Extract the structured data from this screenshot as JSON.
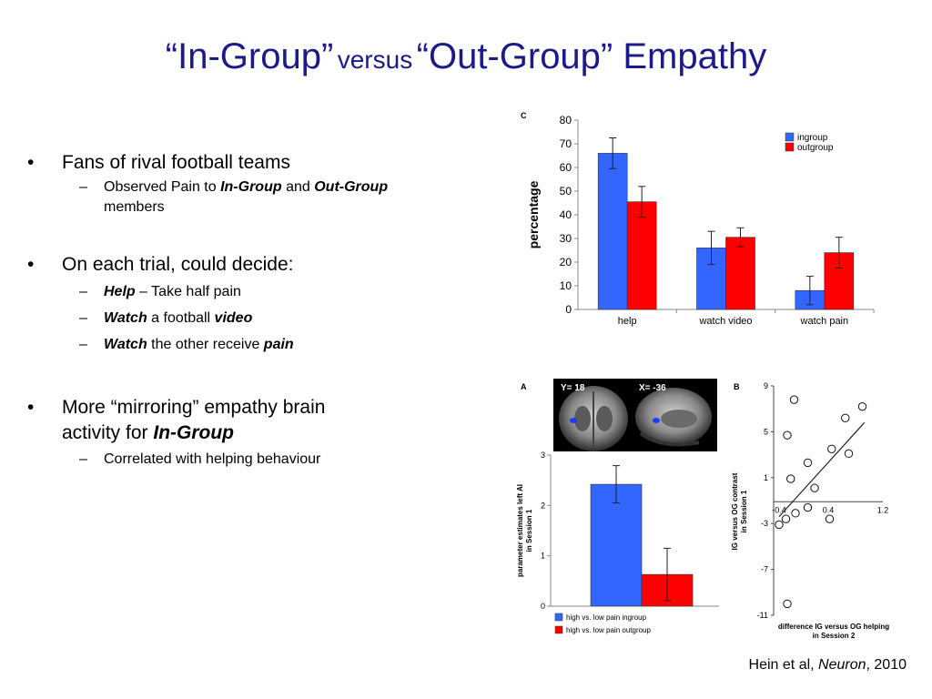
{
  "slide": {
    "title_part1": "“In-Group”",
    "title_versus": "versus",
    "title_part2": "“Out-Group” Empathy",
    "bullets": {
      "b1": "Fans of rival football teams",
      "b1_sub_a": "Observed Pain to ",
      "b1_sub_b": "In-Group",
      "b1_sub_c": " and ",
      "b1_sub_d": "Out-Group",
      "b1_sub_e": " members",
      "b2": "On each trial, could decide:",
      "b2_s1_em": "Help",
      "b2_s1_rest": " – Take half pain",
      "b2_s2_em": "Watch",
      "b2_s2_mid": " a football ",
      "b2_s2_em2": "video",
      "b2_s3_em": "Watch",
      "b2_s3_mid": " the other receive ",
      "b2_s3_em2": "pain",
      "b3_line1": "More “mirroring” empathy brain",
      "b3_line2": "activity for ",
      "b3_em": "In-Group",
      "b3_sub": "Correlated with helping behaviour"
    },
    "bullet_glyph": "•",
    "dash_glyph": "–",
    "citation_pre": "Hein et al, ",
    "citation_journal": "Neuron",
    "citation_post": ", 2010"
  },
  "chart_data": [
    {
      "type": "bar",
      "panel_label": "C",
      "ylabel": "percentage",
      "ylim": [
        0,
        80
      ],
      "yticks": [
        0,
        10,
        20,
        30,
        40,
        50,
        60,
        70,
        80
      ],
      "categories": [
        "help",
        "watch video",
        "watch pain"
      ],
      "series": [
        {
          "name": "ingroup",
          "color": "#3366ff",
          "values": [
            66,
            26,
            8
          ],
          "errors": [
            6.5,
            7,
            6
          ]
        },
        {
          "name": "outgroup",
          "color": "#ff0000",
          "values": [
            45.5,
            30.5,
            24
          ],
          "errors": [
            6.5,
            4,
            6.5
          ]
        }
      ],
      "legend": "top-right"
    },
    {
      "type": "bar",
      "panel_label": "A",
      "ylabel_line1": "parameter estimates left AI",
      "ylabel_line2": "in Session 1",
      "ylim": [
        0,
        3
      ],
      "yticks": [
        0,
        1,
        2,
        3
      ],
      "image_labels": [
        "Y= 18",
        "X= -36"
      ],
      "series": [
        {
          "name": "high vs. low pain ingroup",
          "color": "#3366ff",
          "value": 2.42,
          "error": 0.37
        },
        {
          "name": "high vs. low pain outgroup",
          "color": "#ff0000",
          "value": 0.63,
          "error": 0.52
        }
      ],
      "legend": "bottom"
    },
    {
      "type": "scatter",
      "panel_label": "B",
      "xlabel_line1": "difference IG versus OG helping",
      "xlabel_line2": "in Session 2",
      "ylabel_line1": "IG versus OG contrast",
      "ylabel_line2": "in Session 1",
      "xlim": [
        -0.4,
        1.2
      ],
      "ylim": [
        -11,
        9
      ],
      "xticks": [
        "-0.4",
        "0.4",
        "1.2"
      ],
      "yticks": [
        "9",
        "5",
        "1",
        "-3",
        "-7",
        "-11"
      ],
      "points": [
        {
          "x": -0.1,
          "y": 7.8
        },
        {
          "x": -0.2,
          "y": 4.7
        },
        {
          "x": 0.9,
          "y": 7.2
        },
        {
          "x": 0.65,
          "y": 6.2
        },
        {
          "x": 0.45,
          "y": 3.5
        },
        {
          "x": 0.7,
          "y": 3.1
        },
        {
          "x": 0.1,
          "y": 2.3
        },
        {
          "x": -0.15,
          "y": 0.9
        },
        {
          "x": 0.2,
          "y": 0.1
        },
        {
          "x": 0.1,
          "y": -1.6
        },
        {
          "x": -0.08,
          "y": -2.1
        },
        {
          "x": -0.22,
          "y": -2.6
        },
        {
          "x": -0.32,
          "y": -3.1
        },
        {
          "x": 0.42,
          "y": -2.6
        },
        {
          "x": -0.2,
          "y": -10.0
        }
      ],
      "trendline": {
        "x0": -0.32,
        "y0": -2.4,
        "x1": 0.93,
        "y1": 5.8
      }
    }
  ]
}
